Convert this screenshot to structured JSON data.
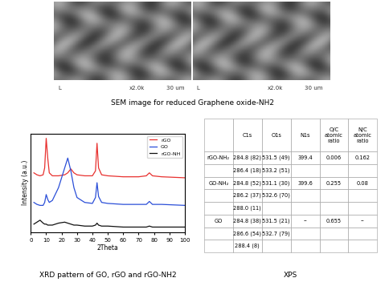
{
  "sem": {
    "caption": "SEM image for reduced Graphene oxide-NH2",
    "panels": [
      {
        "labels": [
          "L",
          "x2.0k",
          "30 um"
        ]
      },
      {
        "labels": [
          "L",
          "x2.0k",
          "30 um"
        ]
      }
    ]
  },
  "chart_data": {
    "type": "line",
    "title": "XRD pattern of GO, rGO and rGO-NH2",
    "x_label": "2Theta",
    "y_label": "Intensity (a.u.)",
    "x": [
      2,
      4,
      6,
      8,
      9,
      10,
      11,
      12,
      14,
      18,
      22,
      24,
      26,
      28,
      30,
      35,
      40,
      42,
      43,
      44,
      46,
      50,
      60,
      70,
      75,
      77,
      79,
      85,
      100
    ],
    "series": [
      {
        "name": "rGO",
        "color": "#e8312f",
        "values": [
          60,
          58,
          57,
          58,
          65,
          95,
          75,
          60,
          57,
          57,
          58,
          60,
          64,
          60,
          58,
          57,
          57,
          62,
          90,
          65,
          58,
          57,
          56,
          56,
          57,
          60,
          57,
          56,
          55
        ]
      },
      {
        "name": "GO",
        "color": "#2b4fd8",
        "values": [
          30,
          28,
          27,
          27,
          30,
          38,
          33,
          30,
          32,
          45,
          65,
          75,
          62,
          45,
          35,
          30,
          29,
          35,
          50,
          36,
          30,
          29,
          28,
          28,
          28,
          31,
          28,
          28,
          27
        ]
      },
      {
        "name": "rGO-NH",
        "color": "#111111",
        "values": [
          8,
          10,
          12,
          9,
          8,
          8,
          7,
          7,
          7,
          9,
          10,
          9,
          8,
          7,
          7,
          6,
          6,
          7,
          9,
          7,
          6,
          6,
          5,
          5,
          5,
          6,
          5,
          5,
          5
        ]
      }
    ],
    "xlim": [
      0,
      100
    ],
    "xticks": [
      0,
      10,
      20,
      30,
      40,
      50,
      60,
      70,
      80,
      90,
      100
    ],
    "ylim": [
      0,
      100
    ],
    "yticks": [],
    "tick_labels": "x",
    "legend": "upper right",
    "grid": false
  },
  "table": {
    "caption": "XPS",
    "header": [
      null,
      "C1s",
      "O1s",
      "N1s",
      "O/C atomic ratio",
      "N/C atomic ratio"
    ],
    "rows": [
      [
        "rGO-NH₂",
        "284.8 (82)",
        "531.5 (49)",
        "399.4",
        "0.006",
        "0.162"
      ],
      [
        null,
        "286.4 (18)",
        "533.2 (51)",
        null,
        null,
        null
      ],
      [
        "GO-NH₂",
        "284.8 (52)",
        "531.1 (30)",
        "399.6",
        "0.255",
        "0.08"
      ],
      [
        null,
        "286.2 (37)",
        "532.6 (70)",
        null,
        null,
        null
      ],
      [
        null,
        "288.0 (11)",
        null,
        null,
        null,
        null
      ],
      [
        "GO",
        "284.8 (38)",
        "531.5 (21)",
        "--",
        "0.655",
        "--"
      ],
      [
        null,
        "286.6 (54)",
        "532.7 (79)",
        null,
        null,
        null
      ],
      [
        null,
        "288.4 (8)",
        null,
        null,
        null,
        null
      ]
    ]
  }
}
